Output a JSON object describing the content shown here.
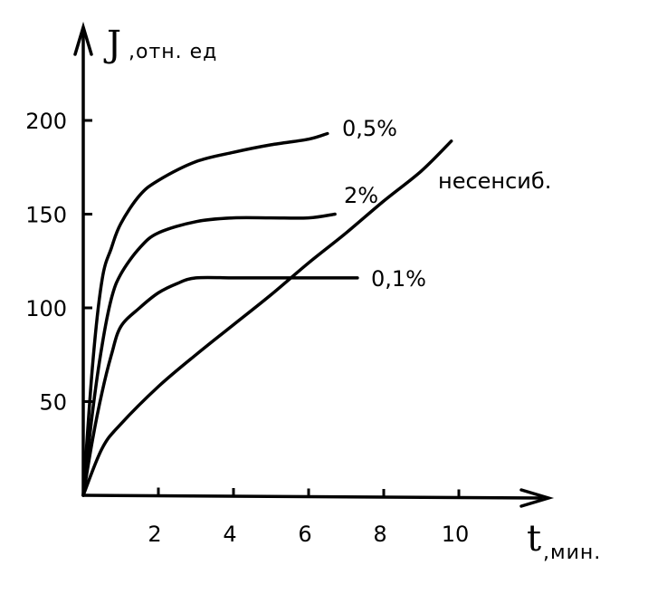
{
  "chart_data": {
    "type": "line",
    "title": "",
    "ylabel": "J",
    "ylabel_unit": ",отн. ед",
    "xlabel": "t",
    "xlabel_unit": ",мин.",
    "xlim": [
      0,
      12
    ],
    "ylim": [
      0,
      240
    ],
    "x_ticks": [
      2,
      4,
      6,
      8,
      10
    ],
    "y_ticks": [
      50,
      100,
      150,
      200
    ],
    "grid": false,
    "legend": "inline",
    "series": [
      {
        "name": "0,5%",
        "x": [
          0,
          0.25,
          0.5,
          0.75,
          1,
          1.5,
          2,
          3,
          4,
          5,
          6,
          6.5
        ],
        "y": [
          0,
          70,
          115,
          132,
          145,
          160,
          168,
          178,
          183,
          187,
          190,
          193
        ]
      },
      {
        "name": "2%",
        "x": [
          0,
          0.25,
          0.5,
          0.75,
          1,
          1.5,
          2,
          3,
          4,
          5,
          6,
          6.7
        ],
        "y": [
          0,
          45,
          80,
          105,
          118,
          132,
          140,
          146,
          148,
          148,
          148,
          150
        ]
      },
      {
        "name": "0,1%",
        "x": [
          0,
          0.25,
          0.5,
          0.75,
          1,
          1.5,
          2,
          2.5,
          3,
          4,
          5,
          6,
          7.3
        ],
        "y": [
          0,
          30,
          55,
          75,
          90,
          100,
          108,
          113,
          116,
          116,
          116,
          116,
          116
        ]
      },
      {
        "name": "несенсиб.",
        "x": [
          0,
          0.5,
          1,
          2,
          3,
          4,
          5,
          6,
          7,
          8,
          9,
          9.8
        ],
        "y": [
          0,
          25,
          38,
          58,
          75,
          91,
          107,
          124,
          140,
          157,
          173,
          189
        ]
      }
    ]
  }
}
